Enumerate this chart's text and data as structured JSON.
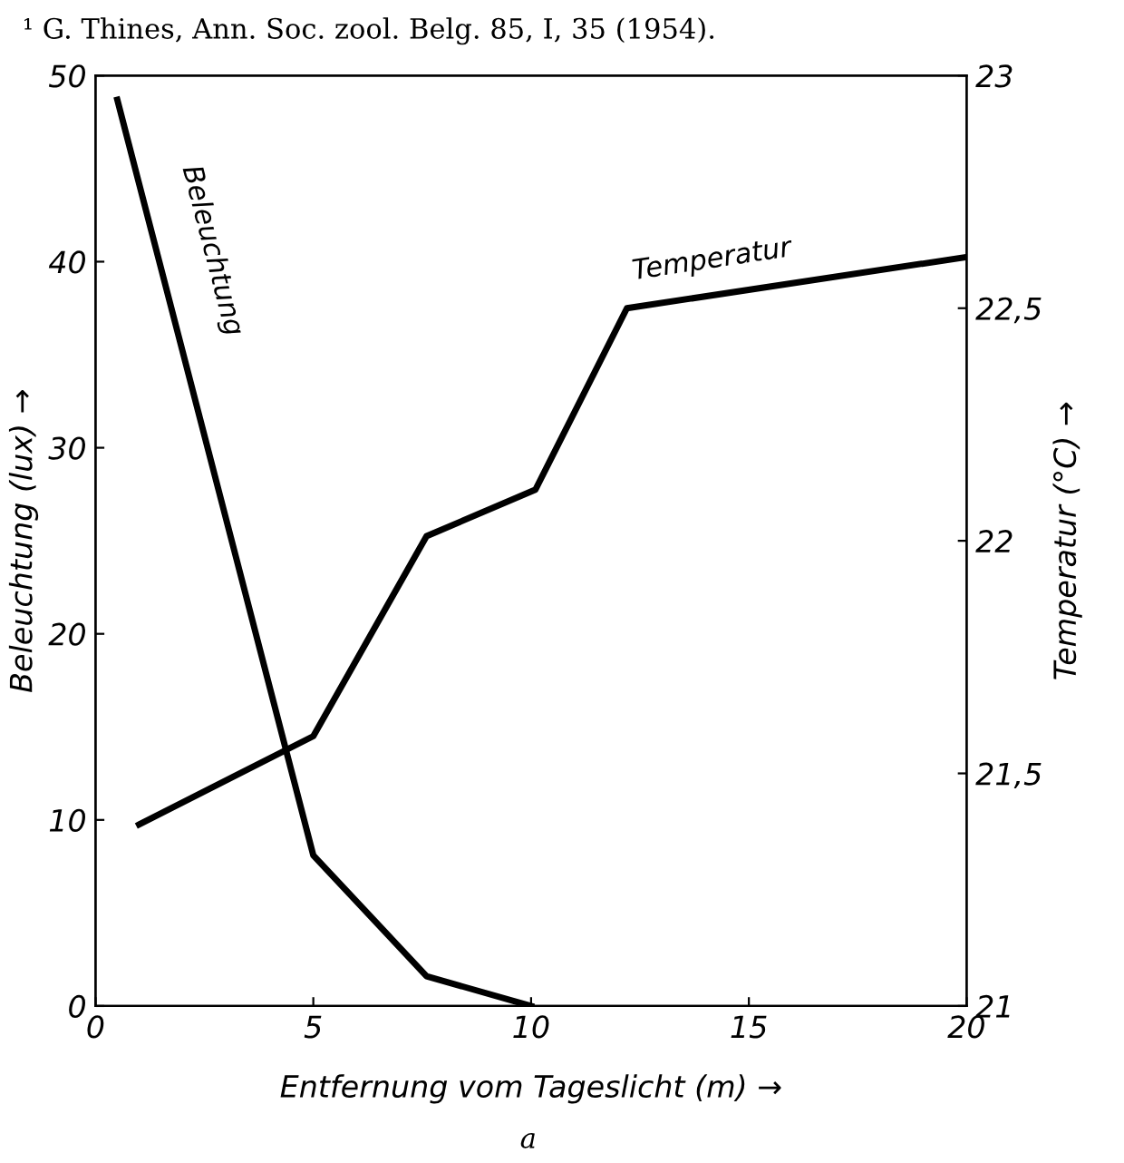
{
  "chart_data": {
    "type": "line",
    "annotations": [
      "¹ G. Thines, Ann. Soc. zool. Belg. 85, I, 35 (1954).",
      "a"
    ],
    "xlabel": "Entfernung vom Tageslicht (m) →",
    "ylabel": "Beleuchtung (lux) →",
    "y2label": "Temperatur (°C) →",
    "xlim": [
      0,
      20
    ],
    "xticks": [
      0,
      5,
      10,
      15,
      20
    ],
    "ylim": [
      0,
      50
    ],
    "yticks": [
      0,
      10,
      20,
      30,
      40,
      50
    ],
    "y2lim": [
      21,
      23
    ],
    "y2ticks": [
      21,
      {
        "value": 21.5,
        "label": "21,5"
      },
      22,
      {
        "value": 22.5,
        "label": "22,5"
      },
      23
    ],
    "grid": false,
    "legend": false,
    "marker": "none",
    "line_style": "solid",
    "series": [
      {
        "name": "Beleuchtung",
        "color": "#000000",
        "x": [
          0.5,
          5,
          7.6,
          10
        ],
        "values": [
          48.7,
          8.1,
          1.6,
          0
        ]
      },
      {
        "name": "Temperatur",
        "color": "#000000",
        "axis": "y2",
        "x": [
          1,
          5,
          7.6,
          10.1,
          12.2,
          20
        ],
        "values": [
          21.39,
          21.58,
          22.01,
          22.11,
          22.5,
          22.61
        ]
      }
    ]
  }
}
